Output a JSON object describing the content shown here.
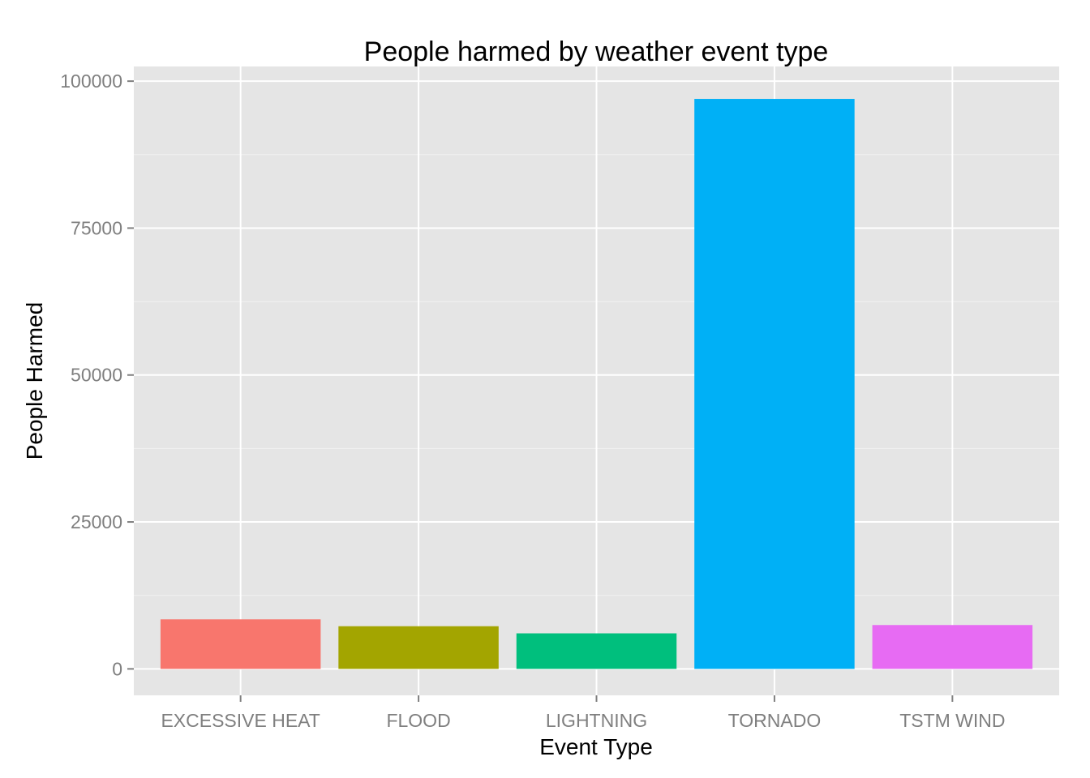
{
  "chart_data": {
    "type": "bar",
    "title": "People harmed by weather event type",
    "xlabel": "Event Type",
    "ylabel": "People Harmed",
    "categories": [
      "EXCESSIVE HEAT",
      "FLOOD",
      "LIGHTNING",
      "TORNADO",
      "TSTM WIND"
    ],
    "values": [
      8428,
      7259,
      6046,
      96979,
      7461
    ],
    "colors": [
      "#F8766D",
      "#A3A500",
      "#00BF7D",
      "#00B0F6",
      "#E76BF3"
    ],
    "ylim": [
      -4500,
      102500
    ],
    "yticks": [
      0,
      25000,
      50000,
      75000,
      100000
    ],
    "ytick_labels": [
      "0",
      "25000",
      "50000",
      "75000",
      "100000"
    ],
    "grid": true,
    "legend": "none",
    "panel_background": "#E5E5E5",
    "gridline_color": "#FFFFFF"
  }
}
